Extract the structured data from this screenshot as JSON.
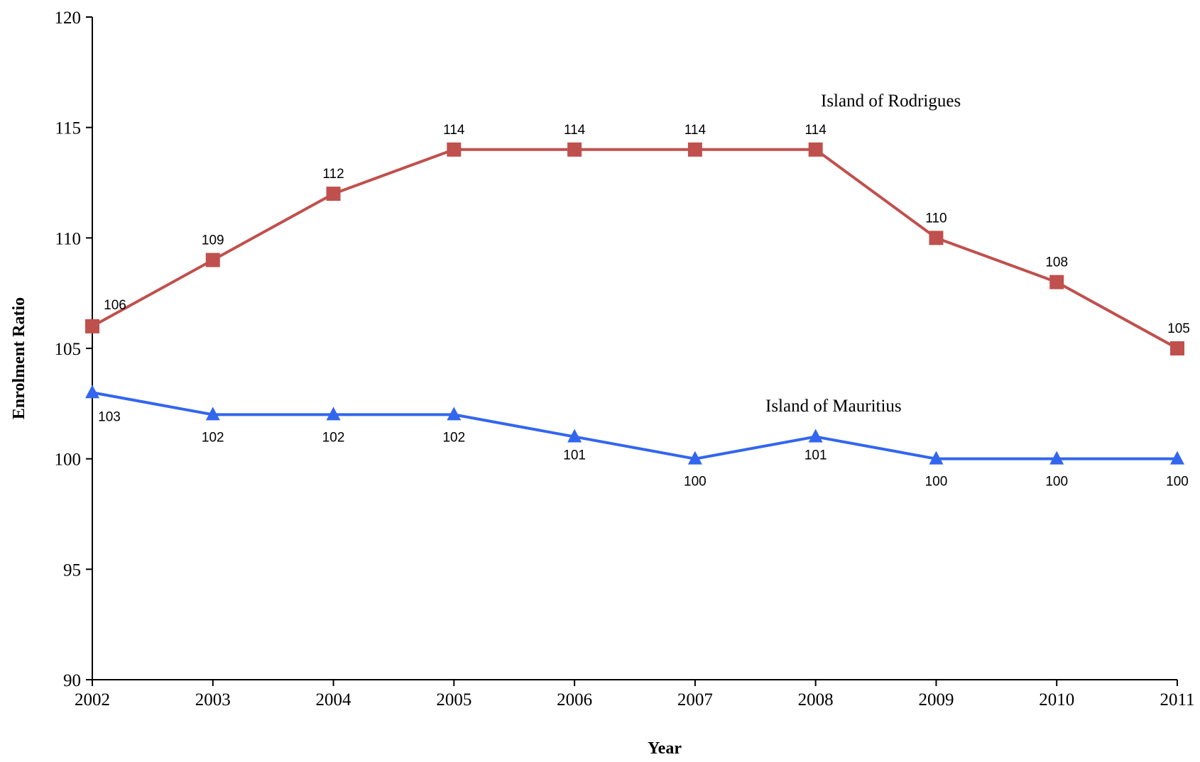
{
  "chart_data": {
    "type": "line",
    "title": "",
    "xlabel": "Year",
    "ylabel": "Enrolment Ratio",
    "x": [
      "2002",
      "2003",
      "2004",
      "2005",
      "2006",
      "2007",
      "2008",
      "2009",
      "2010",
      "2011"
    ],
    "ylim": [
      90,
      120
    ],
    "yticks": [
      "90",
      "95",
      "100",
      "105",
      "110",
      "115",
      "120"
    ],
    "grid": false,
    "legend": "none (series labelled directly on plot)",
    "series": [
      {
        "name": "Island of Rodrigues",
        "values": [
          106,
          109,
          112,
          114,
          114,
          114,
          114,
          110,
          108,
          105
        ],
        "labels": [
          "106",
          "109",
          "112",
          "114",
          "114",
          "114",
          "114",
          "110",
          "108",
          "105"
        ],
        "color": "#c0504d",
        "marker": "square"
      },
      {
        "name": "Island of Mauritius",
        "values": [
          103,
          102,
          102,
          102,
          101,
          100,
          101,
          100,
          100,
          100
        ],
        "labels": [
          "103",
          "102",
          "102",
          "102",
          "101",
          "100",
          "101",
          "100",
          "100",
          "100"
        ],
        "color": "#3366ee",
        "marker": "triangle"
      }
    ]
  }
}
